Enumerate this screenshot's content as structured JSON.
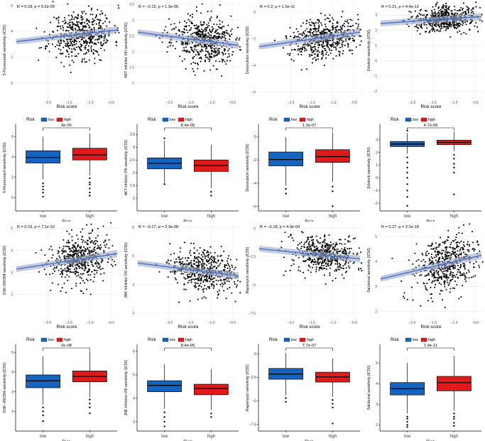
{
  "colors": {
    "low": "#1565c0",
    "high": "#e01a1a",
    "line": "#4472c4",
    "points": "#000000",
    "grid": "#ebebeb"
  },
  "legend": {
    "title": "Risk",
    "low": "low",
    "high": "high"
  },
  "chart_data": [
    {
      "type": "scatter",
      "drug": "5-Fluorouracil",
      "annotation": "R = 0.18, p = 9.2e-09",
      "ylabel": "5-Fluorouracil sensitivity (IC50)",
      "xlabel": "Risk score",
      "xlim": [
        -2.8,
        -0.3
      ],
      "ylim": [
        -1.2,
        6.3
      ],
      "xticks": [
        -2.0,
        -1.5,
        -1.0,
        -0.5
      ],
      "yticks": [
        0,
        2,
        4,
        6
      ],
      "fit": {
        "x": [
          -2.75,
          -0.35
        ],
        "y": [
          3.2,
          4.1
        ]
      },
      "center": [
        -1.2,
        3.9
      ],
      "spread": [
        0.38,
        0.95
      ],
      "seed": 11
    },
    {
      "type": "scatter",
      "drug": "AKT inhibitor VIII",
      "annotation": "R = −0.15, p = 1.3e-06",
      "ylabel": "AKT inhibitor VIII sensitivity (IC50)",
      "xlabel": "Risk score",
      "xlim": [
        -2.8,
        -0.3
      ],
      "ylim": [
        0.5,
        3.6
      ],
      "xticks": [
        -2.0,
        -1.5,
        -1.0,
        -0.5
      ],
      "yticks": [
        1.0,
        1.5,
        2.0,
        2.5,
        3.0,
        3.5
      ],
      "fit": {
        "x": [
          -2.75,
          -0.35
        ],
        "y": [
          2.62,
          2.2
        ]
      },
      "center": [
        -1.2,
        2.4
      ],
      "spread": [
        0.38,
        0.38
      ],
      "seed": 23
    },
    {
      "type": "scatter",
      "drug": "Doxorubicin",
      "annotation": "R = 0.2, p = 1.5e-11",
      "ylabel": "Doxorubicin sensitivity (IC50)",
      "xlabel": "Risk score",
      "xlim": [
        -2.8,
        -0.3
      ],
      "ylim": [
        -6.5,
        0.8
      ],
      "xticks": [
        -2.0,
        -1.5,
        -1.0,
        -0.5
      ],
      "yticks": [
        -6,
        -4,
        -2,
        0
      ],
      "fit": {
        "x": [
          -2.75,
          -0.35
        ],
        "y": [
          -2.6,
          -1.5
        ]
      },
      "center": [
        -1.2,
        -1.9
      ],
      "spread": [
        0.38,
        0.75
      ],
      "seed": 37
    },
    {
      "type": "scatter",
      "drug": "Erlotinib",
      "annotation": "R = 0.21, p = 4.4e-12",
      "ylabel": "Erlotinib sensitivity (IC50)",
      "xlabel": "Risk score",
      "xlim": [
        -2.8,
        -0.3
      ],
      "ylim": [
        -2.5,
        3.9
      ],
      "xticks": [
        -2.0,
        -1.5,
        -1.0,
        -0.5
      ],
      "yticks": [
        -2,
        -1,
        0,
        1,
        2,
        3
      ],
      "fit": {
        "x": [
          -2.75,
          -0.35
        ],
        "y": [
          2.45,
          2.9
        ]
      },
      "center": [
        -1.2,
        2.7
      ],
      "spread": [
        0.38,
        0.42
      ],
      "seed": 41
    },
    {
      "type": "box",
      "drug": "5-Fluorouracil",
      "ylabel": "5-Fluorouracil sensitivity (IC50)",
      "xlabel": "Risk",
      "categories": [
        "low",
        "high"
      ],
      "pvalue": "9e-05",
      "ylim": [
        -1.3,
        7.2
      ],
      "yticks": [
        0,
        2,
        4,
        6
      ],
      "low": {
        "q1": 3.4,
        "median": 3.95,
        "q3": 4.6,
        "whislo": 1.8,
        "whishi": 6.0,
        "outliers": [
          1.4,
          1.1,
          0.8,
          0.5,
          0.1
        ]
      },
      "high": {
        "q1": 3.7,
        "median": 4.2,
        "q3": 4.85,
        "whislo": 2.2,
        "whishi": 6.3,
        "outliers": [
          1.9,
          1.5,
          1.3,
          0.9,
          0.5,
          0.2
        ]
      }
    },
    {
      "type": "box",
      "drug": "AKT inhibitor VIII",
      "ylabel": "AKT inhibitor VIII sensitivity (IC50)",
      "xlabel": "Risk",
      "categories": [
        "low",
        "high"
      ],
      "pvalue": "8.4e-05",
      "ylim": [
        0.5,
        3.9
      ],
      "yticks": [
        1.0,
        1.5,
        2.0,
        2.5,
        3.0,
        3.5
      ],
      "low": {
        "q1": 2.15,
        "median": 2.37,
        "q3": 2.58,
        "whislo": 1.6,
        "whishi": 3.25,
        "outliers": [
          1.55,
          3.35
        ]
      },
      "high": {
        "q1": 2.05,
        "median": 2.28,
        "q3": 2.5,
        "whislo": 1.4,
        "whishi": 3.1,
        "outliers": [
          1.25,
          1.1
        ]
      }
    },
    {
      "type": "box",
      "drug": "Doxorubicin",
      "ylabel": "Doxorubicin sensitivity (IC50)",
      "xlabel": "Risk",
      "categories": [
        "low",
        "high"
      ],
      "pvalue": "1.3e-07",
      "ylim": [
        -6.4,
        1.1
      ],
      "yticks": [
        -6,
        -4,
        -2,
        0
      ],
      "low": {
        "q1": -2.5,
        "median": -1.95,
        "q3": -1.3,
        "whislo": -4.2,
        "whishi": 0.0,
        "outliers": [
          -4.5,
          -4.9
        ]
      },
      "high": {
        "q1": -2.2,
        "median": -1.7,
        "q3": -1.1,
        "whislo": -3.9,
        "whishi": 0.4,
        "outliers": [
          -4.3,
          -4.7,
          -6.0
        ]
      }
    },
    {
      "type": "box",
      "drug": "Erlotinib",
      "ylabel": "Erlotinib sensitivity (IC50)",
      "xlabel": "Risk",
      "categories": [
        "low",
        "high"
      ],
      "pvalue": "4.7e-09",
      "ylim": [
        -2.6,
        4.2
      ],
      "yticks": [
        -2,
        -1,
        0,
        1,
        2,
        3
      ],
      "low": {
        "q1": 2.45,
        "median": 2.65,
        "q3": 2.85,
        "whislo": 1.9,
        "whishi": 3.5,
        "outliers": [
          1.6,
          1.2,
          0.8,
          0.4,
          0.0,
          -0.5,
          -1.0,
          -1.5,
          -2.2,
          3.7
        ]
      },
      "high": {
        "q1": 2.6,
        "median": 2.78,
        "q3": 2.95,
        "whislo": 2.1,
        "whishi": 3.6,
        "outliers": [
          1.8,
          1.5,
          1.1,
          0.8,
          0.4,
          -1.3
        ]
      }
    },
    {
      "type": "scatter",
      "drug": "GSK-650394",
      "annotation": "R = 0.19, p = 7.1e-10",
      "ylabel": "GSK-650394 sensitivity (IC50)",
      "xlabel": "Risk score",
      "xlim": [
        -2.8,
        -0.3
      ],
      "ylim": [
        0.9,
        5.3
      ],
      "xticks": [
        -2.0,
        -1.5,
        -1.0,
        -0.5
      ],
      "yticks": [
        2,
        3,
        4,
        5
      ],
      "fit": {
        "x": [
          -2.75,
          -0.35
        ],
        "y": [
          3.15,
          3.85
        ]
      },
      "center": [
        -1.2,
        3.6
      ],
      "spread": [
        0.38,
        0.55
      ],
      "seed": 53
    },
    {
      "type": "scatter",
      "drug": "JNK Inhibitor VIII",
      "annotation": "R = −0.17, p = 2.3e-08",
      "ylabel": "JNK Inhibitor VIII sensitivity (IC50)",
      "xlabel": "Risk score",
      "xlim": [
        -2.8,
        -0.3
      ],
      "ylim": [
        2.8,
        6.2
      ],
      "xticks": [
        -2.0,
        -1.5,
        -1.0,
        -0.5
      ],
      "yticks": [
        3,
        4,
        5,
        6
      ],
      "fit": {
        "x": [
          -2.75,
          -0.35
        ],
        "y": [
          4.75,
          4.3
        ]
      },
      "center": [
        -1.2,
        4.5
      ],
      "spread": [
        0.38,
        0.35
      ],
      "seed": 67
    },
    {
      "type": "scatter",
      "drug": "Rapamycin",
      "annotation": "R = −0.18, p = 4.9e-09",
      "ylabel": "Rapamycin sensitivity (IC50)",
      "xlabel": "Risk score",
      "xlim": [
        -2.8,
        -0.3
      ],
      "ylim": [
        -8.0,
        0.6
      ],
      "xticks": [
        -2.0,
        -1.5,
        -1.0,
        -0.5
      ],
      "yticks": [
        -7.5,
        -5.0,
        -2.5,
        0.0
      ],
      "fit": {
        "x": [
          -2.75,
          -0.35
        ],
        "y": [
          -1.8,
          -2.7
        ]
      },
      "center": [
        -1.2,
        -2.2
      ],
      "spread": [
        0.38,
        0.8
      ],
      "seed": 71
    },
    {
      "type": "scatter",
      "drug": "Salubrinal",
      "annotation": "R = 0.27, p = 2.2e-18",
      "ylabel": "Salubrinal sensitivity (IC50)",
      "xlabel": "Risk score",
      "xlim": [
        -2.8,
        -0.3
      ],
      "ylim": [
        1.7,
        5.6
      ],
      "xticks": [
        -2.0,
        -1.5,
        -1.0,
        -0.5
      ],
      "yticks": [
        2,
        3,
        4,
        5
      ],
      "fit": {
        "x": [
          -2.75,
          -0.35
        ],
        "y": [
          3.3,
          4.25
        ]
      },
      "center": [
        -1.2,
        3.7
      ],
      "spread": [
        0.38,
        0.55
      ],
      "seed": 83
    },
    {
      "type": "box",
      "drug": "GSK-650394",
      "ylabel": "GSK−650394 sensitivity (IC50)",
      "xlabel": "Risk",
      "categories": [
        "low",
        "high"
      ],
      "pvalue": "2e-08",
      "ylim": [
        1.0,
        5.4
      ],
      "yticks": [
        2,
        3,
        4,
        5
      ],
      "low": {
        "q1": 3.2,
        "median": 3.55,
        "q3": 3.85,
        "whislo": 2.35,
        "whishi": 4.8,
        "outliers": [
          2.2,
          2.0,
          1.8,
          1.5
        ]
      },
      "high": {
        "q1": 3.5,
        "median": 3.78,
        "q3": 4.05,
        "whislo": 2.7,
        "whishi": 5.05,
        "outliers": [
          2.6,
          2.4,
          2.2,
          1.9
        ]
      }
    },
    {
      "type": "box",
      "drug": "JNK Inhibitor VIII",
      "ylabel": "JNK Inhibitor VIII sensitivity (IC50)",
      "xlabel": "Risk",
      "categories": [
        "low",
        "high"
      ],
      "pvalue": "8.4e-05",
      "ylim": [
        2.6,
        6.3
      ],
      "yticks": [
        3,
        4,
        5,
        6
      ],
      "low": {
        "q1": 4.28,
        "median": 4.55,
        "q3": 4.75,
        "whislo": 3.55,
        "whishi": 5.45,
        "outliers": [
          3.4,
          3.2,
          3.0,
          2.8
        ]
      },
      "high": {
        "q1": 4.15,
        "median": 4.42,
        "q3": 4.6,
        "whislo": 3.5,
        "whishi": 5.25,
        "outliers": [
          3.35,
          3.2
        ]
      }
    },
    {
      "type": "box",
      "drug": "Rapamycin",
      "ylabel": "Rapamycin sensitivity (IC50)",
      "xlabel": "Risk",
      "categories": [
        "low",
        "high"
      ],
      "pvalue": "7.7e-07",
      "ylim": [
        -8.2,
        1.0
      ],
      "yticks": [
        -7.5,
        -5.0,
        -2.5,
        0.0
      ],
      "low": {
        "q1": -2.7,
        "median": -2.15,
        "q3": -1.55,
        "whislo": -4.4,
        "whishi": 0.1,
        "outliers": [
          -4.7,
          -5.1
        ]
      },
      "high": {
        "q1": -3.0,
        "median": -2.45,
        "q3": -1.95,
        "whislo": -4.55,
        "whishi": -0.5,
        "outliers": [
          -4.9,
          -5.3,
          -5.7,
          -7.4
        ]
      }
    },
    {
      "type": "box",
      "drug": "Salubrinal",
      "ylabel": "Salubrinal sensitivity (IC50)",
      "xlabel": "Risk",
      "categories": [
        "low",
        "high"
      ],
      "pvalue": "1.4e-11",
      "ylim": [
        1.7,
        5.9
      ],
      "yticks": [
        2,
        3,
        4,
        5
      ],
      "low": {
        "q1": 3.45,
        "median": 3.75,
        "q3": 4.05,
        "whislo": 2.55,
        "whishi": 5.0,
        "outliers": [
          2.4,
          2.3,
          2.15,
          2.0,
          1.9
        ]
      },
      "high": {
        "q1": 3.65,
        "median": 4.05,
        "q3": 4.35,
        "whislo": 2.7,
        "whishi": 5.35,
        "outliers": [
          2.55,
          2.4,
          2.3,
          2.1,
          1.95
        ]
      }
    }
  ]
}
